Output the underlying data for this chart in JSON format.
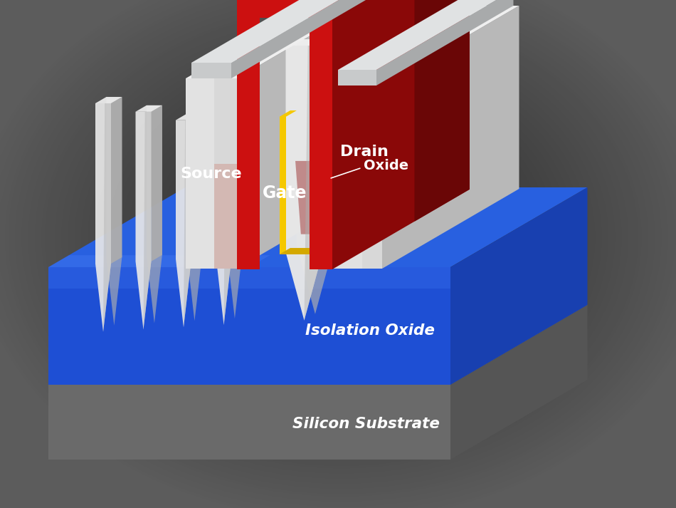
{
  "labels": {
    "source": "Source",
    "gate": "Gate",
    "drain": "Drain",
    "oxide": "Oxide",
    "isolation_oxide": "Isolation Oxide",
    "silicon_substrate": "Silicon Substrate"
  },
  "colors": {
    "bg_dark": "#1a1a1a",
    "bg_mid": "#2e2e2e",
    "substrate_front": "#6a6a6a",
    "substrate_top": "#7a7a7a",
    "substrate_side": "#555555",
    "iso_front": "#1e4fd4",
    "iso_top": "#2860e0",
    "iso_side": "#1840b0",
    "fin_front_light": "#e8e8e8",
    "fin_front_dark": "#b0b0b0",
    "fin_top": "#f0f0f0",
    "fin_side": "#a8a8a8",
    "gate_front": "#cc1010",
    "gate_top": "#e81515",
    "gate_side": "#8a0808",
    "gate_dark_side": "#6a0606",
    "oxide_yellow": "#f5c800",
    "oxide_yellow_dark": "#d4a800",
    "source_drain_front": "#d8d8d8",
    "source_drain_top": "#efefef",
    "source_drain_side": "#b8b8b8",
    "contact_front": "#c8cacb",
    "contact_top": "#e0e2e3",
    "contact_side": "#a8aaab",
    "white": "#ffffff"
  }
}
